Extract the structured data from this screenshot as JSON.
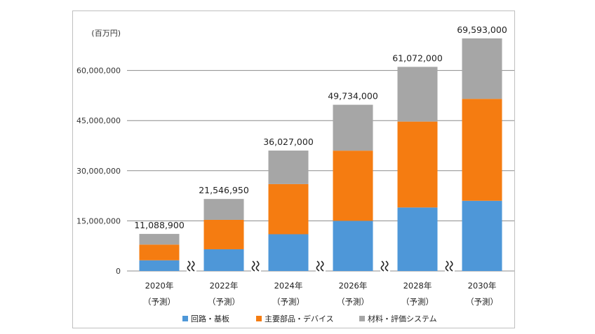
{
  "chart_data": {
    "type": "bar",
    "stacked": true,
    "unit_label": "(百万円)",
    "categories": [
      [
        "2020年",
        "（予測）"
      ],
      [
        "2022年",
        "（予測）"
      ],
      [
        "2024年",
        "（予測）"
      ],
      [
        "2026年",
        "（予測）"
      ],
      [
        "2028年",
        "（予測）"
      ],
      [
        "2030年",
        "（予測）"
      ]
    ],
    "series": [
      {
        "name": "回路・基板",
        "color": "#4e97d8",
        "values": [
          3200000,
          6500000,
          11000000,
          15000000,
          19000000,
          21000000
        ]
      },
      {
        "name": "主要部品・デバイス",
        "color": "#f57c11",
        "values": [
          4700000,
          8800000,
          15000000,
          21000000,
          25700000,
          30500000
        ]
      },
      {
        "name": "材料・評価システム",
        "color": "#a6a6a6",
        "values": [
          3188900,
          6246950,
          10027000,
          13734000,
          16372000,
          18093000
        ]
      }
    ],
    "totals": [
      "11,088,900",
      "21,546,950",
      "36,027,000",
      "49,734,000",
      "61,072,000",
      "69,593,000"
    ],
    "yticks": [
      {
        "value": 0,
        "label": "0"
      },
      {
        "value": 15000000,
        "label": "15,000,000"
      },
      {
        "value": 30000000,
        "label": "30,000,000"
      },
      {
        "value": 45000000,
        "label": "45,000,000"
      },
      {
        "value": 60000000,
        "label": "60,000,000"
      }
    ],
    "ylim": [
      0,
      75000000
    ],
    "axis_break_marks": true,
    "grid": true,
    "legend_position": "bottom"
  }
}
